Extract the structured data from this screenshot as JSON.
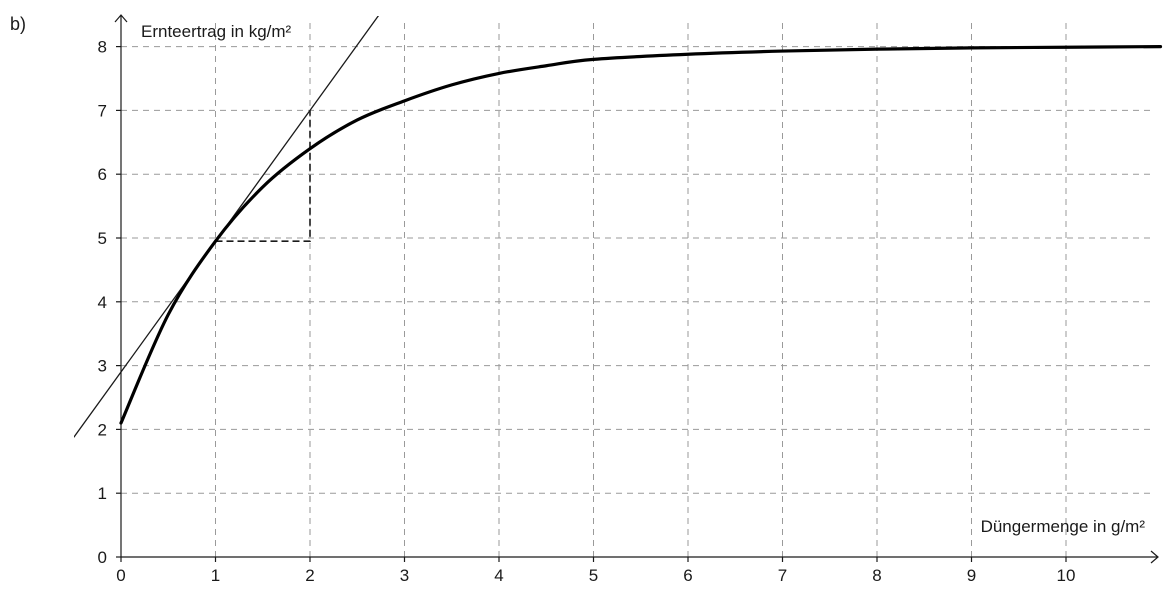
{
  "panel_label": "b)",
  "chart_data": {
    "type": "line",
    "xlabel": "Düngermenge in g/m²",
    "ylabel": "Ernteertrag in kg/m²",
    "xlim": [
      0,
      11
    ],
    "ylim": [
      0,
      8
    ],
    "x_ticks": [
      0,
      1,
      2,
      3,
      4,
      5,
      6,
      7,
      8,
      9,
      10
    ],
    "y_ticks": [
      0,
      1,
      2,
      3,
      4,
      5,
      6,
      7,
      8
    ],
    "grid": true,
    "series": [
      {
        "role": "curve",
        "x": [
          0,
          0.5,
          1,
          1.5,
          2,
          2.5,
          3,
          3.5,
          4,
          4.5,
          5,
          6,
          7,
          8,
          9,
          10,
          11
        ],
        "y": [
          2.1,
          3.8,
          4.95,
          5.8,
          6.4,
          6.85,
          7.15,
          7.4,
          7.58,
          7.7,
          7.8,
          7.88,
          7.93,
          7.96,
          7.98,
          7.99,
          8.0
        ]
      },
      {
        "role": "tangent",
        "point": [
          1,
          4.95
        ],
        "slope": 2.05
      }
    ],
    "annotations": [
      {
        "type": "slope-triangle",
        "from": [
          1,
          4.95
        ],
        "corner": [
          2,
          4.95
        ],
        "to": [
          2,
          7.0
        ]
      }
    ],
    "colors": {
      "curve": "#000000",
      "tangent": "#1a1a1a",
      "grid": "#9a9a9a",
      "axis": "#1a1a1a"
    }
  }
}
